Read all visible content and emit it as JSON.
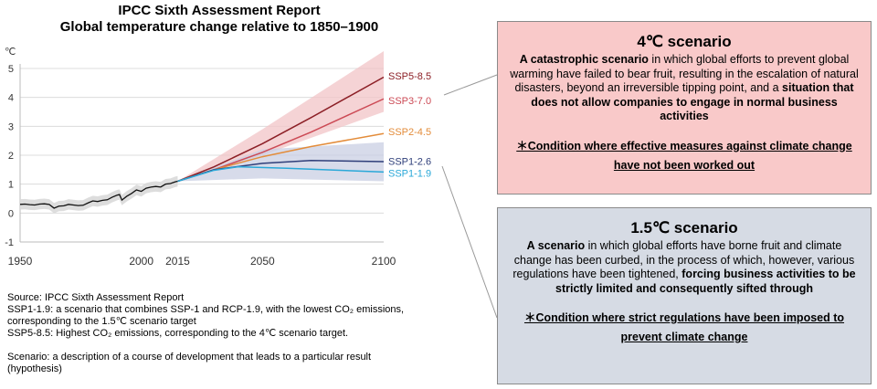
{
  "title": {
    "line1": "IPCC Sixth Assessment Report",
    "line2": "Global temperature change relative to 1850–1900"
  },
  "chart_data": {
    "type": "line",
    "title": "Global temperature change relative to 1850–1900",
    "ylabel": "℃",
    "ylim": [
      -1,
      5
    ],
    "yticks": [
      "5",
      "4",
      "3",
      "2",
      "1",
      "0",
      "-1"
    ],
    "xlim": [
      1950,
      2100
    ],
    "xticks": [
      "1950",
      "2000",
      "2015",
      "2050",
      "2100"
    ],
    "historical": {
      "x": [
        1950,
        1952,
        1954,
        1956,
        1958,
        1960,
        1962,
        1964,
        1966,
        1968,
        1970,
        1972,
        1974,
        1976,
        1978,
        1980,
        1982,
        1984,
        1986,
        1988,
        1990,
        1991,
        1992,
        1994,
        1996,
        1998,
        2000,
        2002,
        2004,
        2006,
        2008,
        2010,
        2012,
        2014,
        2015
      ],
      "y": [
        0.3,
        0.31,
        0.29,
        0.28,
        0.31,
        0.32,
        0.3,
        0.17,
        0.24,
        0.25,
        0.3,
        0.28,
        0.26,
        0.27,
        0.35,
        0.42,
        0.4,
        0.44,
        0.46,
        0.55,
        0.62,
        0.64,
        0.45,
        0.58,
        0.68,
        0.8,
        0.75,
        0.86,
        0.9,
        0.92,
        0.9,
        1.0,
        1.02,
        1.08,
        1.1
      ]
    },
    "series": [
      {
        "name": "SSP5-8.5",
        "color": "#8c1f26",
        "x": [
          2015,
          2030,
          2050,
          2070,
          2100
        ],
        "y": [
          1.1,
          1.6,
          2.4,
          3.3,
          4.7
        ],
        "band": [
          [
            2015,
            1.1,
            1.1
          ],
          [
            2050,
            2.0,
            2.9
          ],
          [
            2100,
            3.5,
            5.6
          ]
        ]
      },
      {
        "name": "SSP3-7.0",
        "color": "#cc4a55",
        "x": [
          2015,
          2030,
          2050,
          2070,
          2100
        ],
        "y": [
          1.1,
          1.5,
          2.1,
          2.8,
          3.95
        ],
        "band": null
      },
      {
        "name": "SSP2-4.5",
        "color": "#e38c3a",
        "x": [
          2015,
          2030,
          2050,
          2070,
          2100
        ],
        "y": [
          1.1,
          1.5,
          1.95,
          2.3,
          2.75
        ],
        "band": null
      },
      {
        "name": "SSP1-2.6",
        "color": "#2f3f7a",
        "x": [
          2015,
          2030,
          2050,
          2070,
          2100
        ],
        "y": [
          1.1,
          1.5,
          1.72,
          1.82,
          1.78
        ],
        "band": [
          [
            2015,
            1.1,
            1.1
          ],
          [
            2050,
            1.2,
            2.2
          ],
          [
            2100,
            1.1,
            2.45
          ]
        ]
      },
      {
        "name": "SSP1-1.9",
        "color": "#2aa8d8",
        "x": [
          2015,
          2030,
          2040,
          2060,
          2100
        ],
        "y": [
          1.1,
          1.48,
          1.6,
          1.55,
          1.42
        ],
        "band": null
      }
    ]
  },
  "notes": [
    "Source: IPCC Sixth Assessment Report",
    "SSP1-1.9: a scenario that combines SSP-1 and RCP-1.9, with the lowest CO₂ emissions,",
    "corresponding to the 1.5℃ scenario target",
    "SSP5-8.5: Highest CO₂ emissions, corresponding to the 4℃ scenario target.",
    "",
    "Scenario: a description of a course of development that leads to a particular result",
    "(hypothesis)"
  ],
  "box4": {
    "heading": "4℃ scenario",
    "bold1": "A catastrophic scenario",
    "text1": " in which global efforts to prevent global warming have failed to bear fruit, resulting in the escalation of natural disasters, beyond an irreversible tipping point, and a ",
    "bold2": "situation that does not allow companies to engage in normal business activities",
    "condition": "＊Condition where effective measures against climate change have not been worked out",
    "bg_color": "#f9c9c9"
  },
  "box15": {
    "heading": "1.5℃ scenario",
    "bold1": "A scenario",
    "text1": " in which global efforts have borne fruit and climate change has been curbed, in the process of which, however, various regulations have been tightened, ",
    "bold2": "forcing business activities to be strictly limited and consequently sifted through",
    "condition": "＊Condition where strict regulations have been imposed to prevent climate change",
    "bg_color": "#d6dbe4"
  }
}
